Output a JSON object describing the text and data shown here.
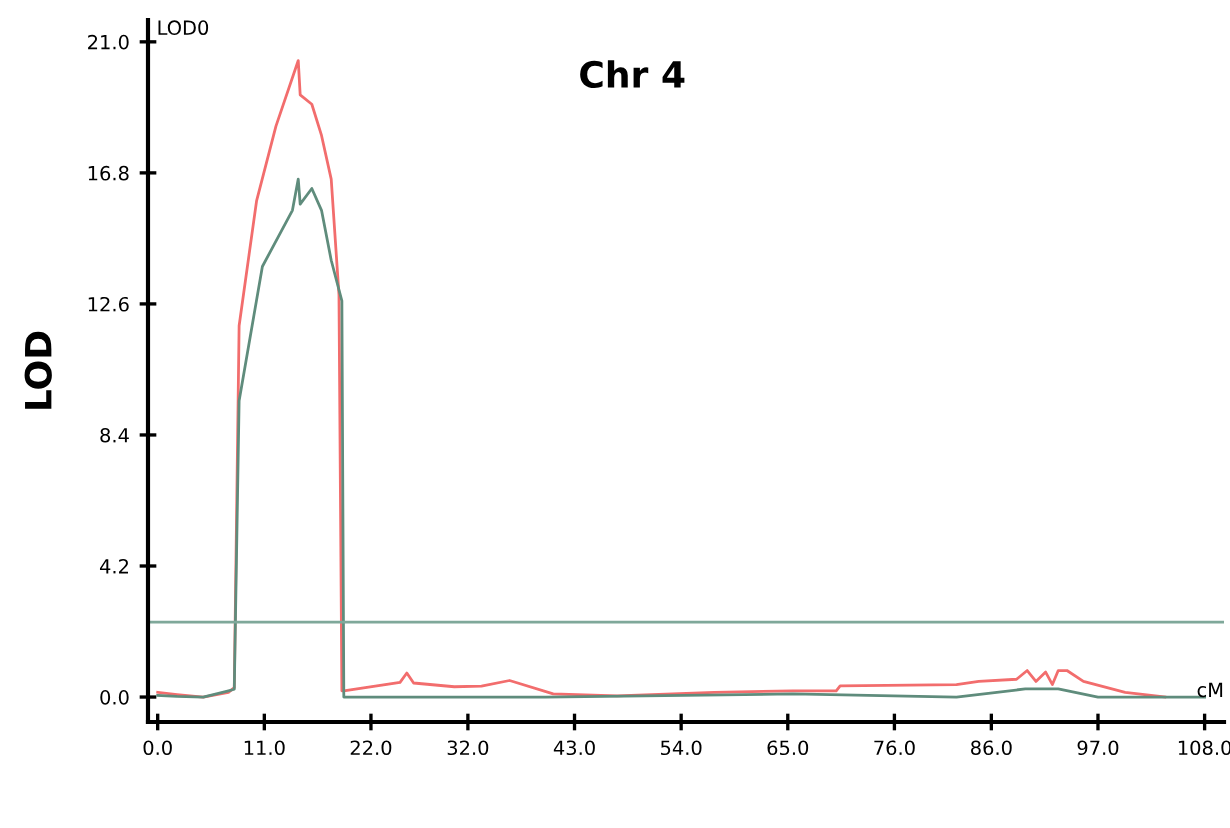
{
  "chart_data": {
    "type": "line",
    "title": "Chr 4",
    "ylabel": "LOD",
    "xlabel": "cM",
    "annotations": [
      "LOD0"
    ],
    "xlim": [
      -1,
      110
    ],
    "xticks": [
      {
        "value": 0,
        "label": "0.0"
      },
      {
        "value": 11,
        "label": "11.0"
      },
      {
        "value": 22,
        "label": "22.0"
      },
      {
        "value": 32,
        "label": "32.0"
      },
      {
        "value": 43,
        "label": "43.0"
      },
      {
        "value": 54,
        "label": "54.0"
      },
      {
        "value": 65,
        "label": "65.0"
      },
      {
        "value": 76,
        "label": "76.0"
      },
      {
        "value": 86,
        "label": "86.0"
      },
      {
        "value": 97,
        "label": "97.0"
      },
      {
        "value": 108,
        "label": "108.0"
      }
    ],
    "ylim": [
      -0.8,
      21.7
    ],
    "yticks": [
      {
        "value": 0,
        "label": "0.0"
      },
      {
        "value": 4.2,
        "label": "4.2"
      },
      {
        "value": 8.4,
        "label": "8.4"
      },
      {
        "value": 12.6,
        "label": "12.6"
      },
      {
        "value": 16.8,
        "label": "16.8"
      },
      {
        "value": 21,
        "label": "21.0"
      }
    ],
    "grid": false,
    "legend": false,
    "line_style": "solid",
    "marker": "none",
    "ref_lines": [
      {
        "axis": "y",
        "value": 2.4,
        "color": "#7fa89a"
      }
    ],
    "series": [
      {
        "color": "#f26d6d",
        "x": [
          0,
          2,
          4.7,
          7.3,
          7.9,
          8.4,
          10.2,
          12.2,
          14.5,
          14.7,
          15.9,
          16.9,
          17.9,
          18.7,
          19.0,
          19.2,
          25.0,
          25.7,
          26.4,
          30.6,
          33.4,
          36.3,
          40.8,
          47.4,
          57.4,
          65.5,
          70,
          70.4,
          82.4,
          84.7,
          88.6,
          89.7,
          90.6,
          91.6,
          92.3,
          92.9,
          93.8,
          95.5,
          99.8,
          103.9
        ],
        "values": [
          0.15,
          0.08,
          0.0,
          0.15,
          0.3,
          11.9,
          15.9,
          18.3,
          20.4,
          19.3,
          19.0,
          18.0,
          16.6,
          12.9,
          0.2,
          0.2,
          0.47,
          0.77,
          0.45,
          0.33,
          0.35,
          0.53,
          0.1,
          0.04,
          0.15,
          0.2,
          0.2,
          0.36,
          0.4,
          0.5,
          0.57,
          0.85,
          0.5,
          0.8,
          0.4,
          0.85,
          0.85,
          0.5,
          0.15,
          0.0
        ]
      },
      {
        "color": "#5f8c7c",
        "x": [
          0,
          2,
          4.7,
          7.3,
          7.9,
          8.4,
          10.8,
          13.9,
          14.5,
          14.7,
          15.9,
          16.9,
          17.9,
          19.0,
          19.2,
          40,
          65.5,
          82.4,
          89.5,
          92.9,
          97,
          103.9,
          108
        ],
        "values": [
          0.05,
          0.02,
          0.0,
          0.2,
          0.25,
          9.5,
          13.8,
          15.6,
          16.6,
          15.8,
          16.3,
          15.6,
          14.0,
          12.7,
          0.0,
          0.0,
          0.1,
          0.0,
          0.26,
          0.26,
          0.0,
          0.0,
          0.0
        ]
      }
    ]
  }
}
